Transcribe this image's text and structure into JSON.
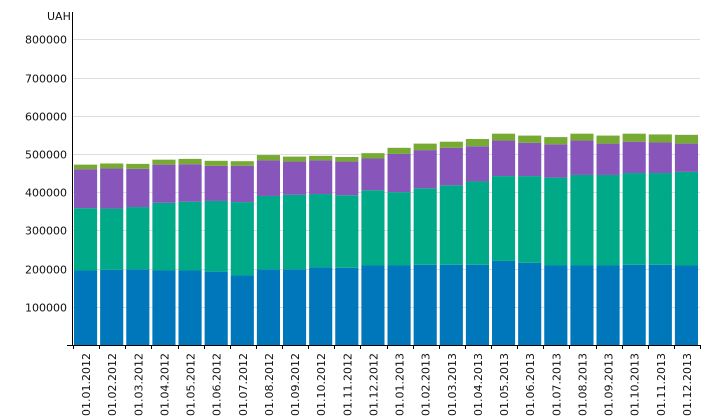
{
  "chart_data": {
    "type": "bar",
    "stacked": true,
    "unit": "UAH",
    "ylim": [
      0,
      840000
    ],
    "yticks": [
      100000,
      200000,
      300000,
      400000,
      500000,
      600000,
      700000,
      800000
    ],
    "grid": true,
    "legend": "none",
    "categories": [
      "01.01.2012",
      "01.02.2012",
      "01.03.2012",
      "01.04.2012",
      "01.05.2012",
      "01.06.2012",
      "01.07.2012",
      "01.08.2012",
      "01.09.2012",
      "01.10.2012",
      "01.11.2012",
      "01.12.2012",
      "01.01.2013",
      "01.02.2013",
      "01.03.2013",
      "01.04.2013",
      "01.05.2013",
      "01.06.2013",
      "01.07.2013",
      "01.08.2013",
      "01.09.2013",
      "01.10.2013",
      "01.11.2013",
      "01.12.2013"
    ],
    "series": [
      {
        "color": "#0077bb",
        "values": [
          195000,
          197000,
          198000,
          195000,
          195000,
          192000,
          182000,
          198000,
          198000,
          203000,
          202000,
          208000,
          208000,
          210000,
          210000,
          210000,
          220000,
          215000,
          208000,
          208000,
          208000,
          210000,
          210000,
          208000
        ]
      },
      {
        "color": "#00aa88",
        "values": [
          163000,
          160000,
          163000,
          177000,
          180000,
          185000,
          192000,
          192000,
          195000,
          192000,
          190000,
          197000,
          192000,
          200000,
          208000,
          218000,
          222000,
          227000,
          230000,
          237000,
          237000,
          240000,
          240000,
          245000
        ]
      },
      {
        "color": "#8855bb",
        "values": [
          102000,
          105000,
          100000,
          100000,
          98000,
          92000,
          95000,
          93000,
          87000,
          88000,
          88000,
          83000,
          100000,
          100000,
          98000,
          92000,
          93000,
          87000,
          87000,
          90000,
          82000,
          82000,
          80000,
          74000
        ]
      },
      {
        "color": "#77aa33",
        "values": [
          12000,
          13000,
          13000,
          13000,
          14000,
          13000,
          12000,
          14000,
          13000,
          12000,
          12000,
          14000,
          16000,
          17000,
          16000,
          19000,
          18000,
          19000,
          19000,
          18000,
          21000,
          21000,
          21000,
          23000
        ]
      }
    ]
  }
}
